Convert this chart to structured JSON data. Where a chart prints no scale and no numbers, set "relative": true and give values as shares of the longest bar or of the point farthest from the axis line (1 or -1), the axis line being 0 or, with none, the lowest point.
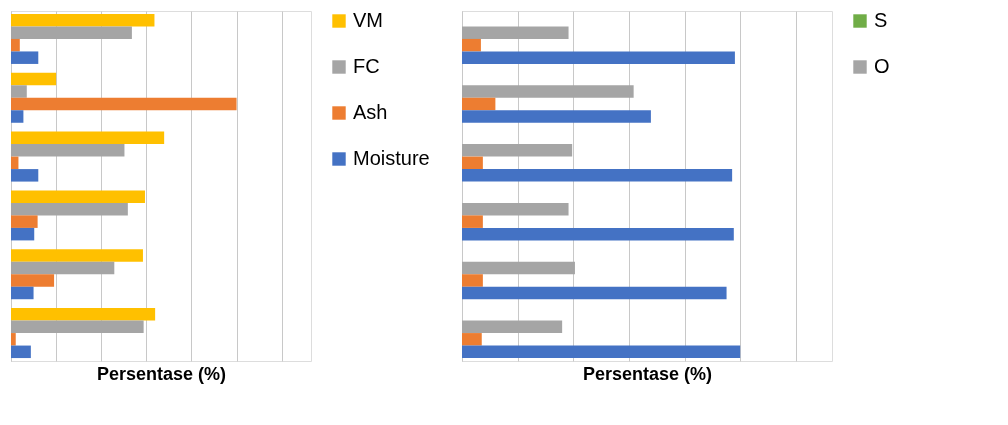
{
  "chart_data": [
    {
      "type": "bar",
      "orientation": "horizontal",
      "relative": true,
      "xlabel": "Persentase (%)",
      "categories": [
        null,
        null,
        null,
        null,
        null,
        null
      ],
      "legend": "right",
      "grid": "x",
      "series": [
        {
          "name": "VM",
          "color": "#ffc000",
          "values": [
            0.636,
            0.2,
            0.679,
            0.594,
            0.585,
            0.639
          ]
        },
        {
          "name": "FC",
          "color": "#a5a5a5",
          "values": [
            0.536,
            0.07,
            0.503,
            0.518,
            0.458,
            0.588
          ]
        },
        {
          "name": "Ash",
          "color": "#ed7d31",
          "values": [
            0.039,
            1.0,
            0.033,
            0.118,
            0.191,
            0.021
          ]
        },
        {
          "name": "Moisture",
          "color": "#4472c4",
          "values": [
            0.121,
            0.055,
            0.121,
            0.103,
            0.1,
            0.088
          ]
        }
      ]
    },
    {
      "type": "bar",
      "orientation": "horizontal",
      "relative": true,
      "xlabel": "Persentase (%)",
      "categories": [
        null,
        null,
        null,
        null,
        null,
        null
      ],
      "legend": "right",
      "grid": "x",
      "series": [
        {
          "name": "S",
          "color": "#70ad47",
          "values": [
            null,
            null,
            null,
            null,
            null,
            null
          ]
        },
        {
          "name": "O",
          "color": "#a5a5a5",
          "values": [
            0.383,
            0.617,
            0.396,
            0.383,
            0.406,
            0.36
          ]
        },
        {
          "color": "#ed7d31",
          "values": [
            0.068,
            0.12,
            0.075,
            0.075,
            0.075,
            0.071
          ]
        },
        {
          "color": "#4472c4",
          "values": [
            0.981,
            0.679,
            0.971,
            0.977,
            0.951,
            1.0
          ]
        }
      ]
    }
  ]
}
